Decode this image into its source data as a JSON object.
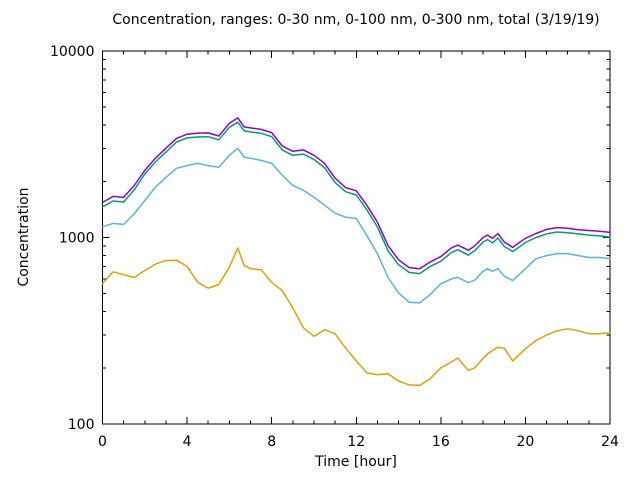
{
  "chart_data": {
    "type": "line",
    "title": "Concentration, ranges: 0-30 nm, 0-100 nm, 0-300 nm, total (3/19/19)",
    "xlabel": "Time [hour]",
    "ylabel": "Concentration",
    "xlim": [
      0,
      24
    ],
    "ylim": [
      100,
      10000
    ],
    "yscale": "log",
    "grid": false,
    "legend": "none",
    "background": "#ffffff",
    "axis_color": "#000000",
    "x_tick_values": [
      0,
      4,
      8,
      12,
      16,
      20,
      24
    ],
    "x_tick_labels": [
      "0",
      "4",
      "8",
      "12",
      "16",
      "20",
      "24"
    ],
    "x_minor_step": 1,
    "y_tick_values": [
      100,
      1000,
      10000
    ],
    "y_tick_labels": [
      "100",
      "1000",
      "10000"
    ],
    "x": [
      0,
      0.5,
      1,
      1.5,
      2,
      2.5,
      3,
      3.5,
      4,
      4.5,
      5,
      5.5,
      6,
      6.4,
      6.7,
      7,
      7.5,
      8,
      8.5,
      9,
      9.5,
      10,
      10.5,
      11,
      11.5,
      12,
      12.5,
      13,
      13.5,
      14,
      14.5,
      15,
      15.5,
      16,
      16.5,
      16.8,
      17.3,
      17.6,
      18,
      18.2,
      18.45,
      18.7,
      19,
      19.4,
      20,
      20.5,
      21,
      21.5,
      22,
      22.5,
      23,
      23.5,
      24
    ],
    "series": [
      {
        "name": "total",
        "color": "#9400D3",
        "values": [
          1540,
          1660,
          1640,
          1900,
          2290,
          2660,
          3010,
          3400,
          3580,
          3630,
          3640,
          3500,
          4100,
          4380,
          3920,
          3870,
          3800,
          3650,
          3100,
          2900,
          2950,
          2760,
          2500,
          2080,
          1850,
          1780,
          1490,
          1210,
          905,
          760,
          690,
          680,
          740,
          790,
          880,
          910,
          855,
          900,
          1000,
          1030,
          990,
          1050,
          945,
          885,
          990,
          1050,
          1105,
          1130,
          1120,
          1100,
          1090,
          1080,
          1065
        ]
      },
      {
        "name": "0-300 nm",
        "color": "#009E73",
        "values": [
          1460,
          1570,
          1550,
          1800,
          2190,
          2540,
          2870,
          3250,
          3420,
          3460,
          3470,
          3340,
          3900,
          4150,
          3730,
          3680,
          3620,
          3470,
          2950,
          2760,
          2800,
          2620,
          2370,
          1970,
          1760,
          1690,
          1410,
          1140,
          850,
          715,
          650,
          640,
          700,
          745,
          830,
          860,
          805,
          850,
          945,
          975,
          935,
          995,
          895,
          840,
          940,
          1000,
          1045,
          1070,
          1060,
          1045,
          1030,
          1020,
          1005
        ]
      },
      {
        "name": "0-100 nm",
        "color": "#56B4E9",
        "values": [
          1140,
          1190,
          1175,
          1340,
          1580,
          1860,
          2100,
          2350,
          2430,
          2500,
          2430,
          2380,
          2760,
          3010,
          2700,
          2660,
          2590,
          2500,
          2160,
          1900,
          1790,
          1640,
          1490,
          1350,
          1285,
          1265,
          1025,
          820,
          610,
          505,
          450,
          446,
          495,
          565,
          600,
          610,
          573,
          590,
          660,
          680,
          660,
          680,
          620,
          587,
          680,
          770,
          800,
          820,
          820,
          800,
          781,
          781,
          771
        ]
      },
      {
        "name": "0-30 nm",
        "color": "#E69F00",
        "values": [
          566,
          655,
          632,
          610,
          665,
          720,
          752,
          756,
          700,
          575,
          535,
          560,
          695,
          880,
          707,
          680,
          672,
          575,
          519,
          420,
          328,
          295,
          320,
          305,
          255,
          218,
          188,
          184,
          186,
          170,
          162,
          161,
          175,
          200,
          215,
          226,
          194,
          200,
          225,
          237,
          248,
          258,
          255,
          218,
          253,
          280,
          300,
          316,
          324,
          316,
          305,
          305,
          309
        ]
      }
    ]
  }
}
